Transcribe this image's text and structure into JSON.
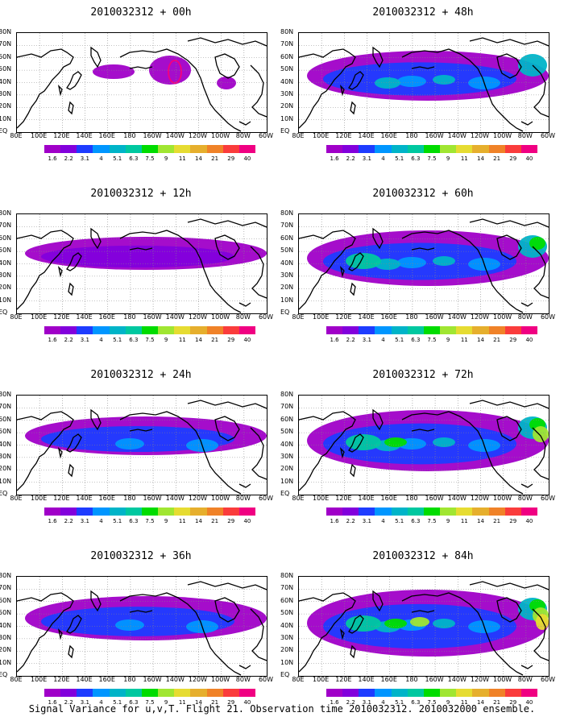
{
  "panels": [
    {
      "title": "2010032312 + 00h",
      "intensity": 0
    },
    {
      "title": "2010032312 + 48h",
      "intensity": 4
    },
    {
      "title": "2010032312 + 12h",
      "intensity": 1
    },
    {
      "title": "2010032312 + 60h",
      "intensity": 5
    },
    {
      "title": "2010032312 + 24h",
      "intensity": 2
    },
    {
      "title": "2010032312 + 72h",
      "intensity": 6
    },
    {
      "title": "2010032312 + 36h",
      "intensity": 3
    },
    {
      "title": "2010032312 + 84h",
      "intensity": 7
    }
  ],
  "lat_labels": [
    "80N",
    "70N",
    "60N",
    "50N",
    "40N",
    "30N",
    "20N",
    "10N",
    "EQ"
  ],
  "lon_labels": [
    "80E",
    "100E",
    "120E",
    "140E",
    "160E",
    "180",
    "160W",
    "140W",
    "120W",
    "100W",
    "80W",
    "60W"
  ],
  "colorbar": {
    "labels": [
      "1.6",
      "2.2",
      "3.1",
      "4",
      "5.1",
      "6.3",
      "7.5",
      "9",
      "11",
      "14",
      "21",
      "29",
      "40"
    ],
    "colors": [
      "#a000c8",
      "#8200dc",
      "#1e3cff",
      "#0096ff",
      "#00b4c8",
      "#00c8a0",
      "#00dc00",
      "#a0e632",
      "#e6dc32",
      "#e6af2d",
      "#f08228",
      "#fa3c3c",
      "#f00082"
    ]
  },
  "footer": "Signal Variance for u,v,T. Flight 21. Observation time 2010032312. 2010032000 ensemble."
}
